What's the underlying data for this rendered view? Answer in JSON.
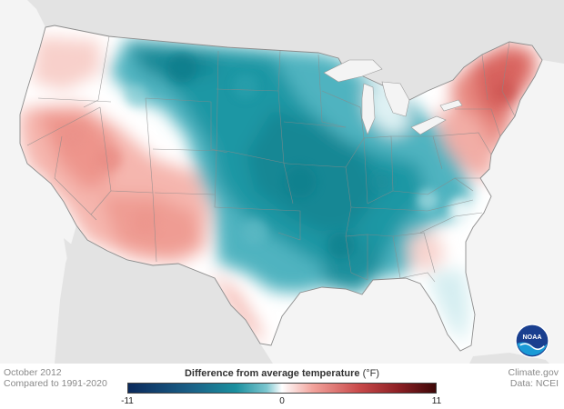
{
  "map": {
    "date": "October 2012",
    "baseline": "Compared to 1991-2020",
    "legend_title": "Difference from average temperature",
    "legend_unit": "(°F)",
    "legend_min": "-11",
    "legend_mid": "0",
    "legend_max": "11",
    "credit_site": "Climate.gov",
    "credit_data": "Data: NCEI",
    "logo_text": "NOAA",
    "colors": {
      "cold_extreme": "#0b2a5c",
      "cold": "#1a8f9e",
      "cool": "#7cc6cf",
      "neutral": "#ffffff",
      "warm": "#f2a39c",
      "hot": "#c94a4a",
      "hot_extreme": "#4a0a0a",
      "land_outside": "#e3e3e3",
      "water": "#f4f4f4"
    }
  }
}
